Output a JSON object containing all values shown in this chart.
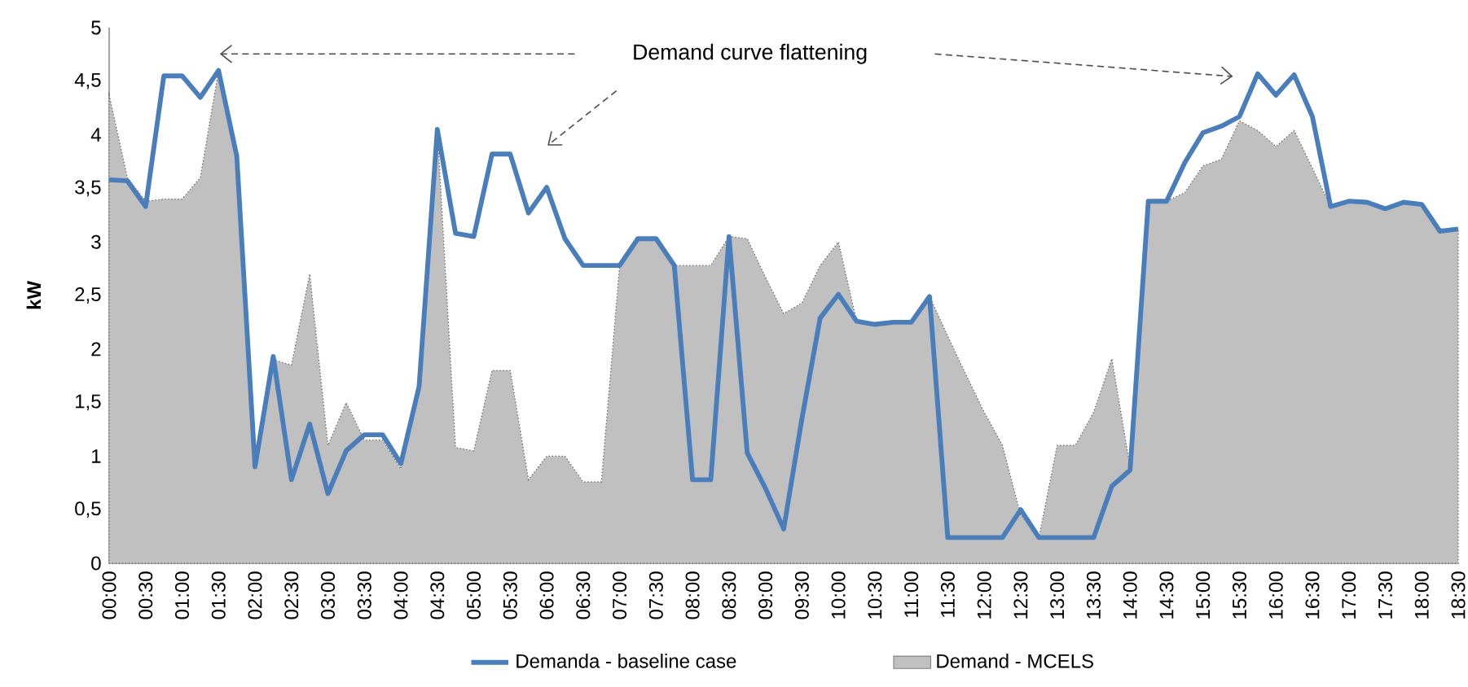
{
  "chart_data": {
    "type": "line",
    "ylabel": "kW",
    "annotations": [
      "Demand curve flattening"
    ],
    "categories": [
      "00:00",
      null,
      "00:30",
      null,
      "01:00",
      null,
      "01:30",
      null,
      "02:00",
      null,
      "02:30",
      null,
      "03:00",
      null,
      "03:30",
      null,
      "04:00",
      null,
      "04:30",
      null,
      "05:00",
      null,
      "05:30",
      null,
      "06:00",
      null,
      "06:30",
      null,
      "07:00",
      null,
      "07:30",
      null,
      "08:00",
      null,
      "08:30",
      null,
      "09:00",
      null,
      "09:30",
      null,
      "10:00",
      null,
      "10:30",
      null,
      "11:00",
      null,
      "11:30",
      null,
      "12:00",
      null,
      "12:30",
      null,
      "13:00",
      null,
      "13:30",
      null,
      "14:00",
      null,
      "14:30",
      null,
      "15:00",
      null,
      "15:30",
      null,
      "16:00",
      null,
      "16:30",
      null,
      "17:00",
      null,
      "17:30",
      null,
      "18:00",
      null,
      "18:30"
    ],
    "series": [
      {
        "name": "Demanda - baseline case",
        "color": "#4a7ebb",
        "values": [
          3.58,
          3.57,
          3.33,
          4.55,
          4.55,
          4.35,
          4.6,
          3.8,
          0.9,
          1.93,
          0.78,
          1.3,
          0.65,
          1.05,
          1.2,
          1.2,
          0.93,
          1.65,
          4.05,
          3.08,
          3.05,
          3.82,
          3.82,
          3.27,
          3.51,
          3.03,
          2.78,
          2.78,
          2.78,
          3.03,
          3.03,
          2.78,
          0.78,
          0.78,
          3.05,
          1.03,
          0.7,
          0.32,
          1.35,
          2.29,
          2.51,
          2.26,
          2.23,
          2.25,
          2.25,
          2.49,
          0.24,
          0.24,
          0.24,
          0.24,
          0.5,
          0.24,
          0.24,
          0.24,
          0.24,
          0.72,
          0.87,
          3.38,
          3.38,
          3.74,
          4.02,
          4.08,
          4.17,
          4.57,
          4.37,
          4.56,
          4.17,
          3.33,
          3.38,
          3.37,
          3.31,
          3.37,
          3.35,
          3.1,
          3.12
        ]
      },
      {
        "name": "Demand - MCELS",
        "type": "area",
        "color": "#c0c0c0",
        "values": [
          4.37,
          3.6,
          3.38,
          3.4,
          3.4,
          3.6,
          4.6,
          3.8,
          0.9,
          1.9,
          1.85,
          2.7,
          1.1,
          1.5,
          1.15,
          1.15,
          0.88,
          1.65,
          4.05,
          1.08,
          1.05,
          1.8,
          1.8,
          0.78,
          1.0,
          1.0,
          0.76,
          0.76,
          2.78,
          3.03,
          3.03,
          2.78,
          2.78,
          2.78,
          3.05,
          3.03,
          2.67,
          2.33,
          2.43,
          2.78,
          3.0,
          2.26,
          2.23,
          2.25,
          2.25,
          2.49,
          2.12,
          1.76,
          1.41,
          1.1,
          0.45,
          0.24,
          1.1,
          1.1,
          1.41,
          1.91,
          0.9,
          3.38,
          3.38,
          3.46,
          3.71,
          3.77,
          4.13,
          4.04,
          3.89,
          4.04,
          3.69,
          3.33,
          3.38,
          3.37,
          3.31,
          3.37,
          3.35,
          3.1,
          3.12
        ]
      }
    ],
    "ylim": [
      0,
      5
    ],
    "yticks": [
      0,
      {
        "value": 0.5,
        "label": "0,5"
      },
      1,
      {
        "value": 1.5,
        "label": "1,5"
      },
      2,
      {
        "value": 2.5,
        "label": "2,5"
      },
      3,
      {
        "value": 3.5,
        "label": "3,5"
      },
      4,
      {
        "value": 4.5,
        "label": "4,5"
      },
      5
    ],
    "legend": "bottom"
  }
}
